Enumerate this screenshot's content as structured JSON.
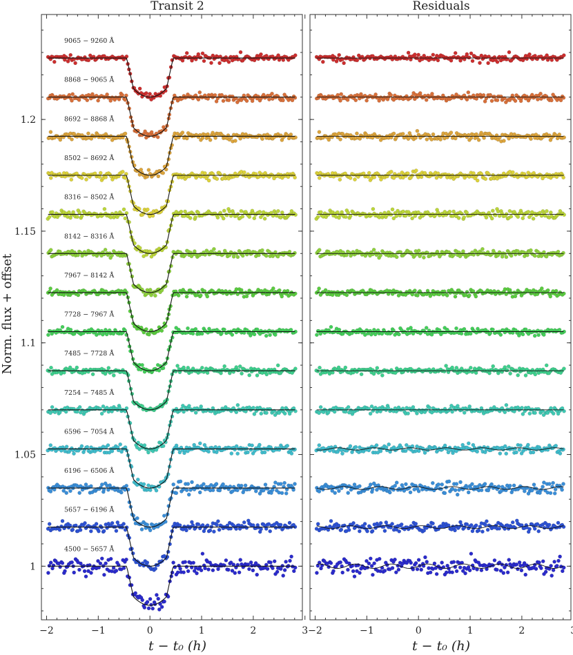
{
  "chart_data": [
    {
      "type": "scatter",
      "title": "Transit 2",
      "xlabel": "t − t₀ (h)",
      "ylabel": "Norm. flux + offset",
      "xlim": [
        -2.1,
        2.95
      ],
      "ylim": [
        0.976,
        1.247
      ],
      "xticks": [
        "−2",
        "−1",
        "0",
        "1",
        "2",
        "3"
      ],
      "xtick_values": [
        -2,
        -1,
        0,
        1,
        2,
        3
      ],
      "yticks": [
        "1",
        "1.05",
        "1.1",
        "1.15",
        "1.2"
      ],
      "ytick_values": [
        1.0,
        1.05,
        1.1,
        1.15,
        1.2
      ],
      "transit": {
        "ingress_start": -0.45,
        "ingress_end": -0.32,
        "egress_start": 0.32,
        "egress_end": 0.45
      },
      "series": [
        {
          "name": "4500 − 5657 Å",
          "baseline": 1.0,
          "depth": 0.0175,
          "scatter": 0.0028,
          "color": "#2b2bcc"
        },
        {
          "name": "5657 − 6196 Å",
          "baseline": 1.0175,
          "depth": 0.0175,
          "scatter": 0.0018,
          "color": "#2d52d4"
        },
        {
          "name": "6196 − 6506 Å",
          "baseline": 1.035,
          "depth": 0.0175,
          "scatter": 0.0018,
          "color": "#3a8ed8"
        },
        {
          "name": "6596 − 7054 Å",
          "baseline": 1.0525,
          "depth": 0.0175,
          "scatter": 0.0015,
          "color": "#40bccc"
        },
        {
          "name": "7254 − 7485 Å",
          "baseline": 1.07,
          "depth": 0.0175,
          "scatter": 0.0013,
          "color": "#40c9b4"
        },
        {
          "name": "7485 − 7728 Å",
          "baseline": 1.0875,
          "depth": 0.0175,
          "scatter": 0.0012,
          "color": "#3fd08e"
        },
        {
          "name": "7728 − 7967 Å",
          "baseline": 1.105,
          "depth": 0.0175,
          "scatter": 0.0012,
          "color": "#44cf5a"
        },
        {
          "name": "7967 − 8142 Å",
          "baseline": 1.1225,
          "depth": 0.0175,
          "scatter": 0.0012,
          "color": "#5bcc40"
        },
        {
          "name": "8142 − 8316 Å",
          "baseline": 1.14,
          "depth": 0.0175,
          "scatter": 0.0014,
          "color": "#8ed13c"
        },
        {
          "name": "8316 − 8502 Å",
          "baseline": 1.1575,
          "depth": 0.0175,
          "scatter": 0.0014,
          "color": "#bcd63a"
        },
        {
          "name": "8502 − 8692 Å",
          "baseline": 1.175,
          "depth": 0.0175,
          "scatter": 0.0013,
          "color": "#dcd23a"
        },
        {
          "name": "8692 − 8868 Å",
          "baseline": 1.1925,
          "depth": 0.0175,
          "scatter": 0.0013,
          "color": "#dca43c"
        },
        {
          "name": "8868 − 9065 Å",
          "baseline": 1.21,
          "depth": 0.0175,
          "scatter": 0.0013,
          "color": "#d8703a"
        },
        {
          "name": "9065 − 9260 Å",
          "baseline": 1.2275,
          "depth": 0.0175,
          "scatter": 0.0013,
          "color": "#cc2f2f"
        }
      ]
    },
    {
      "type": "scatter",
      "title": "Residuals",
      "xlabel": "t − t₀ (h)",
      "xlim": [
        -2.1,
        2.95
      ],
      "ylim": [
        0.976,
        1.247
      ],
      "xticks": [
        "−2",
        "−1",
        "0",
        "1",
        "2",
        "3"
      ],
      "xtick_values": [
        -2,
        -1,
        0,
        1,
        2,
        3
      ]
    }
  ]
}
